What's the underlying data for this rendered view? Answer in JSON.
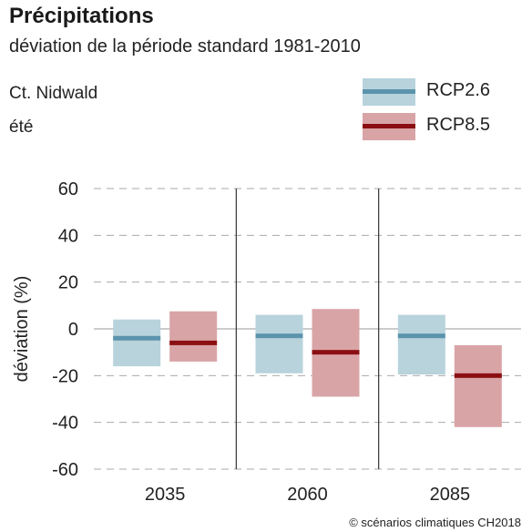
{
  "header": {
    "title": "Précipitations",
    "subtitle": "déviation de la période standard 1981-2010",
    "region": "Ct. Nidwald",
    "season": "été"
  },
  "footer": {
    "copyright": "© scénarios climatiques CH2018"
  },
  "colors": {
    "rcp26_band": "#b8d3dc",
    "rcp26_median": "#5b94ac",
    "rcp85_band": "#d9a4a6",
    "rcp85_median": "#8b0f12",
    "grid": "#aaaaaa",
    "zero_line": "#bbbbbb",
    "separator": "#333333"
  },
  "chart_data": {
    "type": "bar",
    "ylabel": "déviation (%)",
    "xlabel": "",
    "ylim": [
      -60,
      60
    ],
    "yticks": [
      60,
      40,
      20,
      0,
      -20,
      -40,
      -60
    ],
    "grid": "horizontal dashed",
    "legend_position": "top-right",
    "categories": [
      "2035",
      "2060",
      "2085"
    ],
    "series": [
      {
        "name": "RCP2.6",
        "low": [
          -16,
          -19,
          -19.5
        ],
        "median": [
          -4,
          -3,
          -3
        ],
        "high": [
          4,
          6,
          6
        ]
      },
      {
        "name": "RCP8.5",
        "low": [
          -14,
          -29,
          -42
        ],
        "median": [
          -6,
          -10,
          -20
        ],
        "high": [
          7.5,
          8.5,
          -7
        ]
      }
    ]
  }
}
